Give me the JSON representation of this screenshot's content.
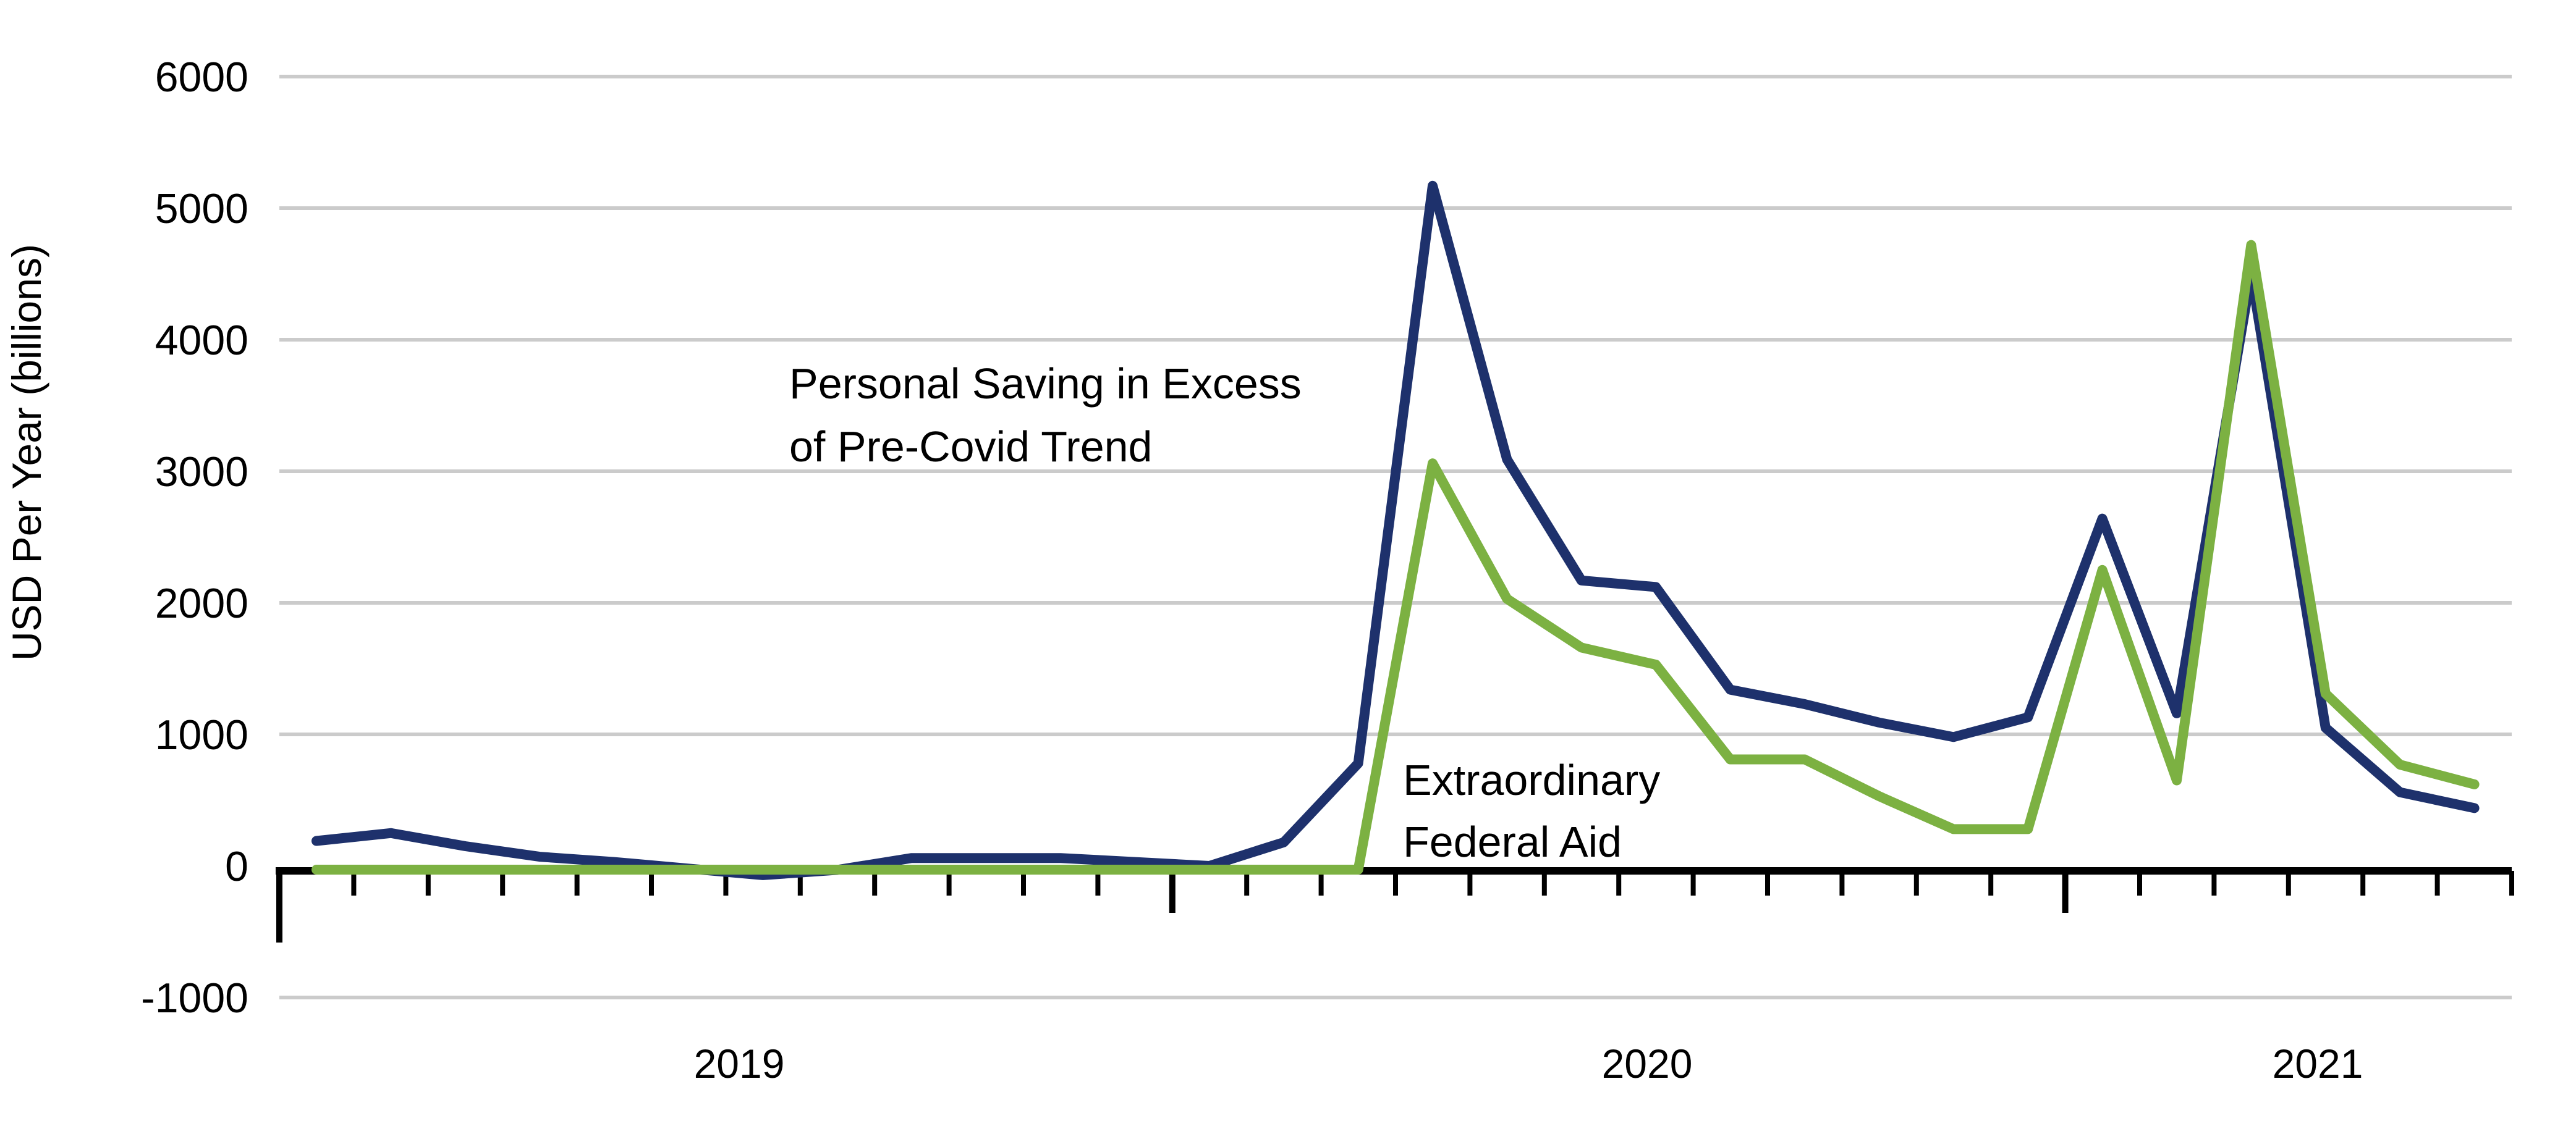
{
  "y_axis": {
    "label": "USD Per Year (billions)",
    "ticks": [
      6000,
      5000,
      4000,
      3000,
      2000,
      1000,
      0,
      -1000
    ],
    "gridline_values": [
      6000,
      5000,
      4000,
      3000,
      2000,
      1000,
      -1000
    ]
  },
  "x_axis": {
    "year_labels": [
      "2019",
      "2020",
      "2021"
    ],
    "months_per_year": 12,
    "n_month_ticks": 31,
    "year_boundary_tick_indices": [
      0,
      12,
      24
    ]
  },
  "annotations": [
    {
      "lines": [
        "Personal Saving in Excess",
        "of Pre-Covid Trend"
      ]
    },
    {
      "lines": [
        "Extraordinary",
        "Federal Aid"
      ]
    }
  ],
  "colors": {
    "saving_line": "#1E316C",
    "aid_line": "#7CB142",
    "gridline": "#CBCBCB",
    "axis": "#000000"
  },
  "chart_data": {
    "type": "line",
    "x": [
      "2019-01",
      "2019-02",
      "2019-03",
      "2019-04",
      "2019-05",
      "2019-06",
      "2019-07",
      "2019-08",
      "2019-09",
      "2019-10",
      "2019-11",
      "2019-12",
      "2020-01",
      "2020-02",
      "2020-03",
      "2020-04",
      "2020-05",
      "2020-06",
      "2020-07",
      "2020-08",
      "2020-09",
      "2020-10",
      "2020-11",
      "2020-12",
      "2021-01",
      "2021-02",
      "2021-03",
      "2021-04",
      "2021-05",
      "2021-06"
    ],
    "series": [
      {
        "name": "Personal Saving in Excess of Pre-Covid Trend",
        "color": "#1E316C",
        "values": [
          190,
          250,
          150,
          70,
          30,
          -20,
          -70,
          -30,
          60,
          60,
          60,
          30,
          0,
          180,
          780,
          5170,
          3090,
          2170,
          2120,
          1340,
          1230,
          1090,
          980,
          1130,
          2640,
          1160,
          4500,
          1050,
          560,
          440
        ]
      },
      {
        "name": "Extraordinary Federal Aid",
        "color": "#7CB142",
        "values": [
          0,
          0,
          0,
          0,
          0,
          0,
          0,
          0,
          0,
          0,
          0,
          0,
          0,
          0,
          0,
          3060,
          2030,
          1660,
          1530,
          810,
          810,
          530,
          280,
          280,
          2250,
          650,
          4720,
          1310,
          770,
          620
        ]
      }
    ],
    "ylabel": "USD Per Year (billions)",
    "ylim": [
      -1000,
      6000
    ],
    "grid": "horizontal",
    "legend_position": "none (direct line labels)"
  }
}
